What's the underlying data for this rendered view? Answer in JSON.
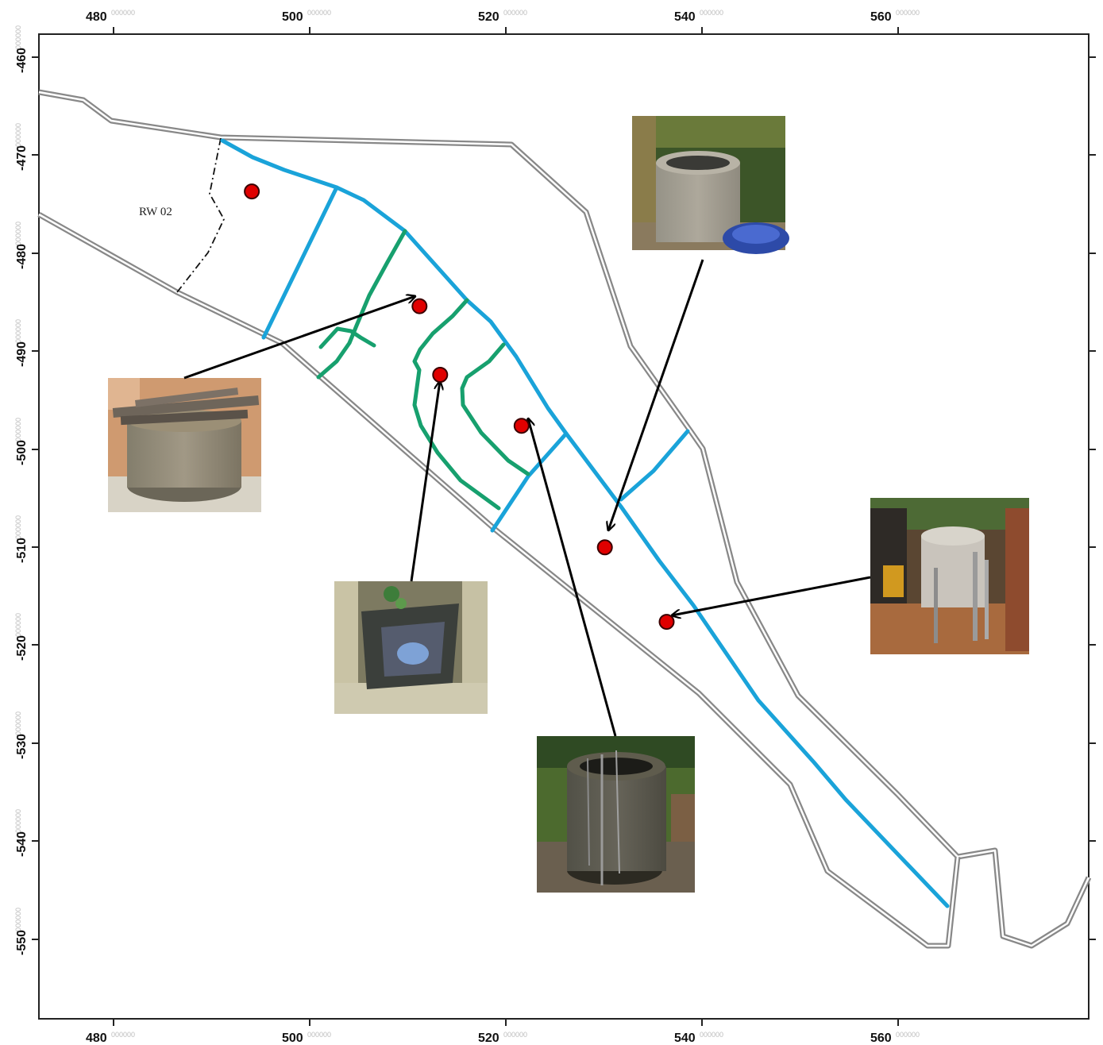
{
  "map": {
    "region_label": "RW 02",
    "coordinate_suffix": "000000",
    "x_ticks": [
      "480",
      "500",
      "520",
      "540",
      "560"
    ],
    "y_ticks": [
      "-460",
      "-470",
      "-480",
      "-490",
      "-500",
      "-510",
      "-520",
      "-530",
      "-540",
      "-550"
    ],
    "wells": [
      {
        "id": "w1",
        "x": 494.1,
        "y": -473.7,
        "photo": "none"
      },
      {
        "id": "w2",
        "x": 511.2,
        "y": -485.4,
        "photo": "wooden-cover-well"
      },
      {
        "id": "w3",
        "x": 513.3,
        "y": -492.4,
        "photo": "square-open-well"
      },
      {
        "id": "w4",
        "x": 521.6,
        "y": -497.6,
        "photo": "cylindrical-well-with-rods"
      },
      {
        "id": "w5",
        "x": 530.1,
        "y": -510.0,
        "photo": "concrete-well-with-drum"
      },
      {
        "id": "w6",
        "x": 536.4,
        "y": -517.6,
        "photo": "well-with-pumps"
      }
    ],
    "colors": {
      "boundary": "#9b9b9b",
      "stream_main": "#1aa3d9",
      "stream_secondary": "#17a06e",
      "well_marker": "#e00000",
      "arrow": "#000000"
    }
  }
}
